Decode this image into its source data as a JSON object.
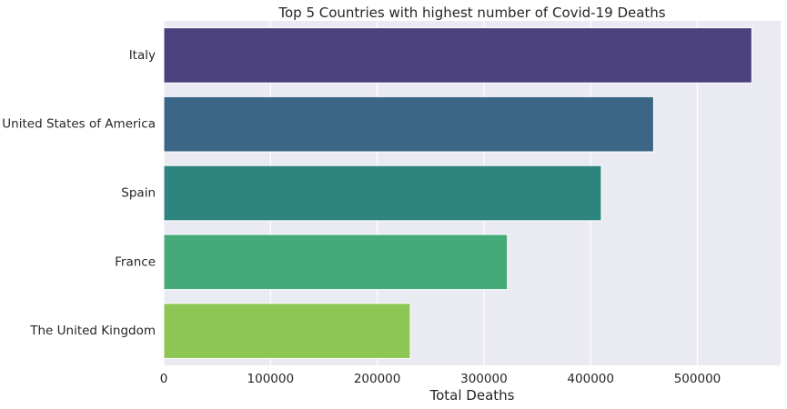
{
  "chart_data": {
    "type": "bar",
    "orientation": "horizontal",
    "title": "Top 5 Countries with highest number of Covid-19 Deaths",
    "xlabel": "Total Deaths",
    "ylabel": "",
    "categories": [
      "Italy",
      "United States of America",
      "Spain",
      "France",
      "The United Kingdom"
    ],
    "values": [
      551000,
      459000,
      410000,
      322000,
      231000
    ],
    "colors": [
      "#4a417d",
      "#3b6686",
      "#2e8580",
      "#45a978",
      "#8ec655"
    ],
    "xlim": [
      0,
      578000
    ],
    "xticks": [
      0,
      100000,
      200000,
      300000,
      400000,
      500000
    ],
    "xtick_labels": [
      "0",
      "100000",
      "200000",
      "300000",
      "400000",
      "500000"
    ],
    "grid": "vertical",
    "background": "#eaeaf2",
    "grid_color": "#ffffff",
    "legend": "none"
  }
}
